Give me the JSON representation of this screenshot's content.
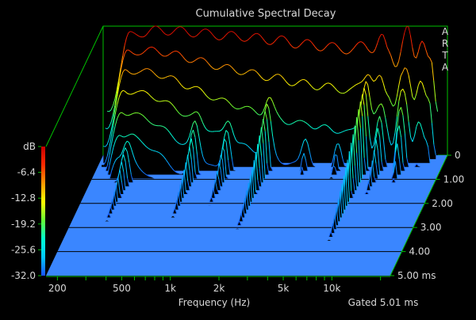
{
  "chart_data": {
    "type": "waterfall",
    "title": "Cumulative Spectral Decay",
    "xlabel": "Frequency (Hz)",
    "ylabel": "dB",
    "zlabel": "ms",
    "brand": [
      "A",
      "R",
      "T",
      "A"
    ],
    "gate_text": "Gated 5.01 ms",
    "x_scale": "log",
    "xlim": [
      170,
      23000
    ],
    "ylim": [
      -32.0,
      0
    ],
    "zlim": [
      0,
      5.0
    ],
    "x_ticks": [
      {
        "label": "200",
        "value": 200
      },
      {
        "label": "500",
        "value": 500
      },
      {
        "label": "1k",
        "value": 1000
      },
      {
        "label": "2k",
        "value": 2000
      },
      {
        "label": "5k",
        "value": 5000
      },
      {
        "label": "10k",
        "value": 10000
      }
    ],
    "y_ticks": [
      {
        "label": "dB",
        "value": 0
      },
      {
        "label": "-6.4",
        "value": -6.4
      },
      {
        "label": "-12.8",
        "value": -12.8
      },
      {
        "label": "-19.2",
        "value": -19.2
      },
      {
        "label": "-25.6",
        "value": -25.6
      },
      {
        "label": "-32.0",
        "value": -32.0
      }
    ],
    "z_ticks": [
      {
        "label": "0",
        "value": 0
      },
      {
        "label": "1.00",
        "value": 1.0
      },
      {
        "label": "2.00",
        "value": 2.0
      },
      {
        "label": "3.00",
        "value": 3.0
      },
      {
        "label": "4.00",
        "value": 4.0
      },
      {
        "label": "5.00 ms",
        "value": 5.0
      }
    ],
    "slice_count": 32,
    "initial_response": [
      [
        180,
        -22
      ],
      [
        250,
        -2.5
      ],
      [
        300,
        -1.5
      ],
      [
        400,
        -1
      ],
      [
        600,
        -1.5
      ],
      [
        800,
        -2
      ],
      [
        1000,
        -2.5
      ],
      [
        1200,
        -2.5
      ],
      [
        1500,
        -3
      ],
      [
        2000,
        -3.5
      ],
      [
        3000,
        -4.5
      ],
      [
        4000,
        -5
      ],
      [
        5000,
        -5.5
      ],
      [
        6000,
        -6
      ],
      [
        7000,
        -4.5
      ],
      [
        8000,
        -5.5
      ],
      [
        9000,
        -3
      ],
      [
        10000,
        -6.5
      ],
      [
        11000,
        -9
      ],
      [
        13000,
        -1
      ],
      [
        14500,
        -8
      ],
      [
        16000,
        -2.5
      ],
      [
        18000,
        -8.5
      ],
      [
        20000,
        -22
      ]
    ],
    "resonances": [
      {
        "f": 280,
        "level": -18,
        "decay_ms": 2.8
      },
      {
        "f": 700,
        "level": -16,
        "decay_ms": 2.3
      },
      {
        "f": 1100,
        "level": -17,
        "decay_ms": 2.1
      },
      {
        "f": 1900,
        "level": -14,
        "decay_ms": 2.4
      },
      {
        "f": 3300,
        "level": -17,
        "decay_ms": 0.9
      },
      {
        "f": 5200,
        "level": -20,
        "decay_ms": 1.2
      },
      {
        "f": 7600,
        "level": -9,
        "decay_ms": 2.2
      },
      {
        "f": 9500,
        "level": -14,
        "decay_ms": 1.3
      },
      {
        "f": 12800,
        "level": -8,
        "decay_ms": 0.7
      }
    ],
    "colors": {
      "background": "#000000",
      "floor": "#3a86ff",
      "wall": "#000000",
      "axis": "#00c000",
      "text": "#d8d8d8",
      "colormap": [
        "#1a52ff",
        "#00c8ff",
        "#00ffd0",
        "#66ff33",
        "#ffff00",
        "#ff9900",
        "#ff2a00",
        "#c80000"
      ]
    },
    "grid": true,
    "colorbar": "left"
  }
}
